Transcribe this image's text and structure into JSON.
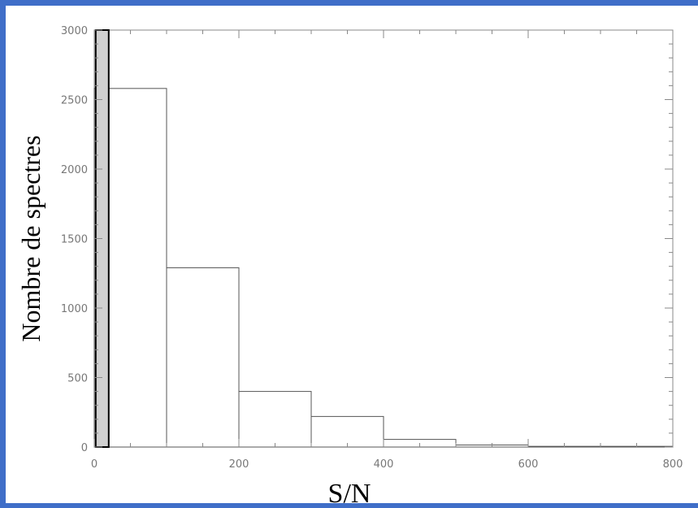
{
  "colors": {
    "background_border": "#3f6ec8",
    "plot_background": "#ffffff",
    "axis": "#888888",
    "bar_outline": "#555555",
    "highlight_bar_fill": "#d0d0d0",
    "highlight_bar_outline": "#000000"
  },
  "chart_data": {
    "type": "bar",
    "xlabel": "S/N",
    "ylabel": "Nombre de spectres",
    "xlim": [
      0,
      800
    ],
    "ylim": [
      0,
      3000
    ],
    "x_ticks": [
      "0",
      "200",
      "400",
      "600",
      "800"
    ],
    "y_ticks": [
      "0",
      "500",
      "1000",
      "1500",
      "2000",
      "2500",
      "3000"
    ],
    "grid": false,
    "bins": [
      {
        "x0": 0,
        "x1": 100,
        "value": 2580
      },
      {
        "x0": 100,
        "x1": 200,
        "value": 1290
      },
      {
        "x0": 200,
        "x1": 300,
        "value": 400
      },
      {
        "x0": 300,
        "x1": 400,
        "value": 220
      },
      {
        "x0": 400,
        "x1": 500,
        "value": 55
      },
      {
        "x0": 500,
        "x1": 600,
        "value": 15
      },
      {
        "x0": 600,
        "x1": 700,
        "value": 5
      },
      {
        "x0": 700,
        "x1": 800,
        "value": 5
      }
    ],
    "highlight_bar": {
      "x0": 2,
      "x1": 20,
      "value": 3000
    }
  }
}
